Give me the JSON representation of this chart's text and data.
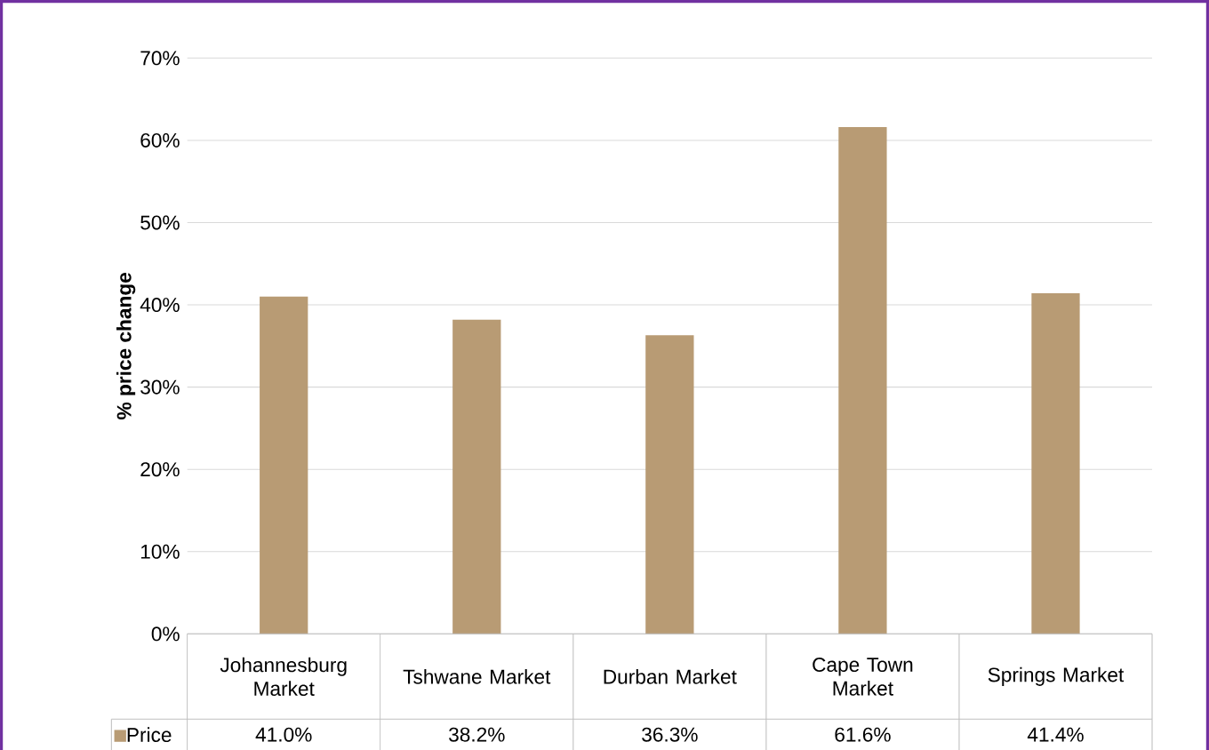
{
  "chart_data": {
    "type": "bar",
    "ylabel": "% price change",
    "categories": [
      "Johannesburg Market",
      "Tshwane Market",
      "Durban Market",
      "Cape Town Market",
      "Springs Market"
    ],
    "series": [
      {
        "name": "Price",
        "color": "#b89b74",
        "values": [
          41.0,
          38.2,
          36.3,
          61.6,
          41.4
        ],
        "value_labels": [
          "41.0%",
          "38.2%",
          "36.3%",
          "61.6%",
          "41.4%"
        ]
      }
    ],
    "ylim": [
      0,
      70
    ],
    "yticks": [
      {
        "value": 0,
        "label": "0%"
      },
      {
        "value": 10,
        "label": "10%"
      },
      {
        "value": 20,
        "label": "20%"
      },
      {
        "value": 30,
        "label": "30%"
      },
      {
        "value": 40,
        "label": "40%"
      },
      {
        "value": 50,
        "label": "50%"
      },
      {
        "value": 60,
        "label": "60%"
      },
      {
        "value": 70,
        "label": "70%"
      }
    ],
    "grid": "y",
    "legend": "bottom"
  }
}
